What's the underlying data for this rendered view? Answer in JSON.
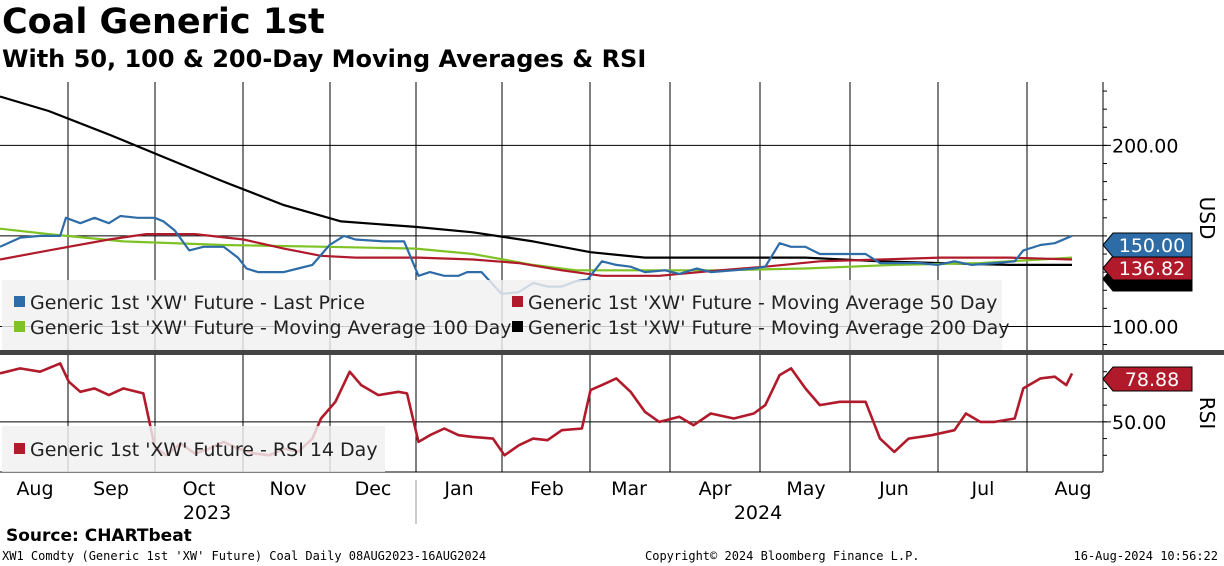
{
  "title": "Coal Generic 1st",
  "subtitle": "With 50, 100 & 200-Day Moving Averages & RSI",
  "footer": {
    "source": "Source: CHARTbeat",
    "ticker_info": "XW1 Comdty (Generic 1st 'XW' Future) Coal  Daily 08AUG2023-16AUG2024",
    "copyright": "Copyright© 2024 Bloomberg Finance L.P.",
    "timestamp": "16-Aug-2024 10:56:22"
  },
  "colors": {
    "price": "#2e6ca8",
    "ma50": "#b01a2a",
    "ma100": "#7ec225",
    "ma200": "#000000",
    "rsi": "#b01a2a"
  },
  "chart_data": [
    {
      "type": "line",
      "panel": "price",
      "ylabel": "USD",
      "ylim": [
        87,
        235
      ],
      "yticks": [
        100,
        200
      ],
      "ytick_labels": [
        "100.00",
        "200.00"
      ],
      "x_labels": [
        "Aug",
        "Sep",
        "Oct",
        "Nov",
        "Dec",
        "Jan",
        "Feb",
        "Mar",
        "Apr",
        "May",
        "Jun",
        "Jul",
        "Aug"
      ],
      "year_labels": [
        "2023",
        "2024"
      ],
      "x_range": [
        "2023-08-08",
        "2024-08-16"
      ],
      "grid": true,
      "legend_position": "bottom-left",
      "series": [
        {
          "name": "Generic 1st 'XW' Future - Last Price",
          "last_value_label": "150.00",
          "points": [
            [
              "2023-08-08",
              144
            ],
            [
              "2023-08-15",
              149
            ],
            [
              "2023-08-22",
              150
            ],
            [
              "2023-08-29",
              150
            ],
            [
              "2023-08-31",
              160
            ],
            [
              "2023-09-05",
              157
            ],
            [
              "2023-09-10",
              160
            ],
            [
              "2023-09-15",
              157
            ],
            [
              "2023-09-19",
              161
            ],
            [
              "2023-09-25",
              160
            ],
            [
              "2023-10-01",
              160
            ],
            [
              "2023-10-04",
              158
            ],
            [
              "2023-10-08",
              153
            ],
            [
              "2023-10-13",
              142
            ],
            [
              "2023-10-18",
              144
            ],
            [
              "2023-10-25",
              144
            ],
            [
              "2023-10-30",
              138
            ],
            [
              "2023-11-02",
              132
            ],
            [
              "2023-11-06",
              130
            ],
            [
              "2023-11-10",
              130
            ],
            [
              "2023-11-15",
              130
            ],
            [
              "2023-11-20",
              132
            ],
            [
              "2023-11-25",
              134
            ],
            [
              "2023-12-01",
              145
            ],
            [
              "2023-12-06",
              150
            ],
            [
              "2023-12-10",
              148
            ],
            [
              "2023-12-20",
              147
            ],
            [
              "2023-12-27",
              147
            ],
            [
              "2024-01-01",
              128
            ],
            [
              "2024-01-05",
              130
            ],
            [
              "2024-01-10",
              128
            ],
            [
              "2024-01-15",
              128
            ],
            [
              "2024-01-18",
              130
            ],
            [
              "2024-01-23",
              130
            ],
            [
              "2024-01-30",
              118
            ],
            [
              "2024-02-05",
              119
            ],
            [
              "2024-02-10",
              124
            ],
            [
              "2024-02-15",
              122
            ],
            [
              "2024-02-20",
              122
            ],
            [
              "2024-02-25",
              125
            ],
            [
              "2024-02-29",
              126
            ],
            [
              "2024-03-05",
              136
            ],
            [
              "2024-03-10",
              134
            ],
            [
              "2024-03-15",
              133
            ],
            [
              "2024-03-20",
              130
            ],
            [
              "2024-03-27",
              131
            ],
            [
              "2024-04-01",
              129
            ],
            [
              "2024-04-07",
              132
            ],
            [
              "2024-04-12",
              130
            ],
            [
              "2024-04-20",
              131
            ],
            [
              "2024-04-27",
              132
            ],
            [
              "2024-05-01",
              133
            ],
            [
              "2024-05-06",
              146
            ],
            [
              "2024-05-10",
              144
            ],
            [
              "2024-05-15",
              144
            ],
            [
              "2024-05-20",
              140
            ],
            [
              "2024-05-27",
              140
            ],
            [
              "2024-06-05",
              140
            ],
            [
              "2024-06-10",
              135
            ],
            [
              "2024-06-17",
              135
            ],
            [
              "2024-06-24",
              135
            ],
            [
              "2024-06-30",
              134
            ],
            [
              "2024-07-06",
              136
            ],
            [
              "2024-07-12",
              134
            ],
            [
              "2024-07-20",
              135
            ],
            [
              "2024-07-27",
              136
            ],
            [
              "2024-07-30",
              142
            ],
            [
              "2024-08-05",
              145
            ],
            [
              "2024-08-10",
              146
            ],
            [
              "2024-08-16",
              150
            ]
          ]
        },
        {
          "name": "Generic 1st 'XW' Future - Moving Average 50 Day",
          "last_value_label": "136.82",
          "points": [
            [
              "2023-08-08",
              137
            ],
            [
              "2023-08-25",
              142
            ],
            [
              "2023-09-15",
              148
            ],
            [
              "2023-09-28",
              151
            ],
            [
              "2023-10-15",
              151
            ],
            [
              "2023-11-01",
              148
            ],
            [
              "2023-11-15",
              143
            ],
            [
              "2023-11-28",
              139
            ],
            [
              "2023-12-10",
              138
            ],
            [
              "2024-01-01",
              138
            ],
            [
              "2024-01-20",
              137
            ],
            [
              "2024-02-05",
              135
            ],
            [
              "2024-02-20",
              131
            ],
            [
              "2024-03-05",
              128
            ],
            [
              "2024-03-25",
              128
            ],
            [
              "2024-04-15",
              131
            ],
            [
              "2024-05-01",
              133
            ],
            [
              "2024-05-20",
              136
            ],
            [
              "2024-06-10",
              137
            ],
            [
              "2024-07-01",
              138
            ],
            [
              "2024-07-25",
              138
            ],
            [
              "2024-08-16",
              137
            ]
          ]
        },
        {
          "name": "Generic 1st 'XW' Future - Moving Average 100 Day",
          "last_value_label": "",
          "points": [
            [
              "2023-08-08",
              154
            ],
            [
              "2023-08-25",
              151
            ],
            [
              "2023-09-20",
              147
            ],
            [
              "2023-10-25",
              145
            ],
            [
              "2023-11-30",
              144
            ],
            [
              "2023-12-31",
              143
            ],
            [
              "2024-01-20",
              140
            ],
            [
              "2024-02-10",
              134
            ],
            [
              "2024-02-25",
              131
            ],
            [
              "2024-03-20",
              131
            ],
            [
              "2024-04-15",
              131
            ],
            [
              "2024-05-15",
              132
            ],
            [
              "2024-06-15",
              134
            ],
            [
              "2024-07-15",
              135
            ],
            [
              "2024-08-16",
              138
            ]
          ]
        },
        {
          "name": "Generic 1st 'XW' Future - Moving Average 200 Day",
          "last_value_label": "",
          "points": [
            [
              "2023-08-08",
              227
            ],
            [
              "2023-08-25",
              219
            ],
            [
              "2023-09-15",
              206
            ],
            [
              "2023-10-05",
              193
            ],
            [
              "2023-10-25",
              180
            ],
            [
              "2023-11-15",
              167
            ],
            [
              "2023-12-05",
              158
            ],
            [
              "2023-12-31",
              155
            ],
            [
              "2024-01-20",
              152
            ],
            [
              "2024-02-10",
              147
            ],
            [
              "2024-03-01",
              141
            ],
            [
              "2024-03-20",
              138
            ],
            [
              "2024-04-15",
              138
            ],
            [
              "2024-05-15",
              138
            ],
            [
              "2024-06-10",
              136
            ],
            [
              "2024-07-01",
              135
            ],
            [
              "2024-07-25",
              134
            ],
            [
              "2024-08-16",
              134
            ]
          ]
        }
      ]
    },
    {
      "type": "line",
      "panel": "rsi",
      "ylabel": "RSI",
      "ylim": [
        20,
        90
      ],
      "yticks": [
        50
      ],
      "ytick_labels": [
        "50.00"
      ],
      "grid": true,
      "legend_position": "bottom-left",
      "series": [
        {
          "name": "Generic 1st 'XW' Future - RSI 14 Day",
          "last_value_label": "78.88",
          "points": [
            [
              "2023-08-08",
              79
            ],
            [
              "2023-08-15",
              82
            ],
            [
              "2023-08-22",
              80
            ],
            [
              "2023-08-29",
              85
            ],
            [
              "2023-09-01",
              74
            ],
            [
              "2023-09-05",
              68
            ],
            [
              "2023-09-10",
              70
            ],
            [
              "2023-09-15",
              66
            ],
            [
              "2023-09-20",
              70
            ],
            [
              "2023-09-27",
              67
            ],
            [
              "2023-10-01",
              35
            ],
            [
              "2023-10-05",
              30
            ],
            [
              "2023-10-10",
              37
            ],
            [
              "2023-10-15",
              31
            ],
            [
              "2023-10-20",
              34
            ],
            [
              "2023-10-25",
              38
            ],
            [
              "2023-10-30",
              34
            ],
            [
              "2023-11-05",
              31
            ],
            [
              "2023-11-10",
              30
            ],
            [
              "2023-11-15",
              34
            ],
            [
              "2023-11-20",
              32
            ],
            [
              "2023-11-25",
              40
            ],
            [
              "2023-11-28",
              52
            ],
            [
              "2023-12-03",
              62
            ],
            [
              "2023-12-08",
              80
            ],
            [
              "2023-12-12",
              72
            ],
            [
              "2023-12-18",
              66
            ],
            [
              "2023-12-25",
              68
            ],
            [
              "2023-12-28",
              67
            ],
            [
              "2024-01-01",
              38
            ],
            [
              "2024-01-05",
              42
            ],
            [
              "2024-01-10",
              46
            ],
            [
              "2024-01-15",
              42
            ],
            [
              "2024-01-20",
              41
            ],
            [
              "2024-01-27",
              40
            ],
            [
              "2024-01-31",
              30
            ],
            [
              "2024-02-05",
              36
            ],
            [
              "2024-02-10",
              40
            ],
            [
              "2024-02-15",
              39
            ],
            [
              "2024-02-20",
              45
            ],
            [
              "2024-02-27",
              46
            ],
            [
              "2024-03-01",
              69
            ],
            [
              "2024-03-05",
              72
            ],
            [
              "2024-03-10",
              76
            ],
            [
              "2024-03-15",
              68
            ],
            [
              "2024-03-20",
              56
            ],
            [
              "2024-03-25",
              50
            ],
            [
              "2024-04-01",
              53
            ],
            [
              "2024-04-06",
              48
            ],
            [
              "2024-04-12",
              55
            ],
            [
              "2024-04-20",
              52
            ],
            [
              "2024-04-27",
              55
            ],
            [
              "2024-05-01",
              60
            ],
            [
              "2024-05-06",
              78
            ],
            [
              "2024-05-10",
              82
            ],
            [
              "2024-05-15",
              70
            ],
            [
              "2024-05-20",
              60
            ],
            [
              "2024-05-27",
              62
            ],
            [
              "2024-06-05",
              62
            ],
            [
              "2024-06-10",
              40
            ],
            [
              "2024-06-15",
              32
            ],
            [
              "2024-06-20",
              40
            ],
            [
              "2024-06-28",
              42
            ],
            [
              "2024-07-06",
              45
            ],
            [
              "2024-07-10",
              55
            ],
            [
              "2024-07-15",
              50
            ],
            [
              "2024-07-20",
              50
            ],
            [
              "2024-07-27",
              52
            ],
            [
              "2024-07-30",
              70
            ],
            [
              "2024-08-05",
              76
            ],
            [
              "2024-08-10",
              77
            ],
            [
              "2024-08-14",
              72
            ],
            [
              "2024-08-16",
              79
            ]
          ]
        }
      ]
    }
  ]
}
